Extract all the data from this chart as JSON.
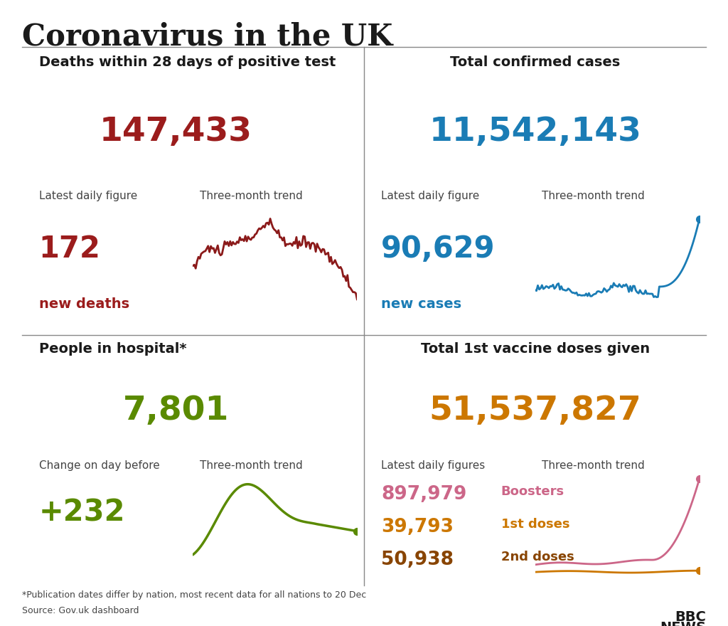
{
  "title": "Coronavirus in the UK",
  "bg_color": "#ffffff",
  "title_color": "#1a1a1a",
  "panels": [
    {
      "label": "Deaths within 28 days of positive test",
      "label_align": "left",
      "main_value": "147,433",
      "main_color": "#9b1c1c",
      "sub_label": "Latest daily figure",
      "trend_label": "Three-month trend",
      "daily_value": "172",
      "daily_sub": "new deaths",
      "daily_color": "#9b1c1c",
      "trend_color": "#8b1a1a",
      "trend_type": "deaths"
    },
    {
      "label": "Total confirmed cases",
      "label_align": "center",
      "main_value": "11,542,143",
      "main_color": "#1a7cb5",
      "sub_label": "Latest daily figure",
      "trend_label": "Three-month trend",
      "daily_value": "90,629",
      "daily_sub": "new cases",
      "daily_color": "#1a7cb5",
      "trend_color": "#1a7cb5",
      "trend_type": "cases"
    },
    {
      "label": "People in hospital*",
      "label_align": "center",
      "main_value": "7,801",
      "main_color": "#5a8a00",
      "sub_label": "Change on day before",
      "trend_label": "Three-month trend",
      "daily_value": "+232",
      "daily_sub": "",
      "daily_color": "#5a8a00",
      "trend_color": "#5a8a00",
      "trend_type": "hospital"
    },
    {
      "label": "Total 1st vaccine doses given",
      "label_align": "center",
      "main_value": "51,537,827",
      "main_color": "#cc7700",
      "sub_label": "Latest daily figures",
      "trend_label": "Three-month trend",
      "daily_value": "897,979",
      "daily_sub": "Boosters",
      "daily_value2": "39,793",
      "daily_sub2": "1st doses",
      "daily_value3": "50,938",
      "daily_sub3": "2nd doses",
      "daily_color": "#cc6688",
      "daily_color2": "#cc7700",
      "daily_color3": "#884400",
      "trend_color": "#cc6688",
      "trend_color2": "#cc7700",
      "trend_type": "vaccine"
    }
  ],
  "footnote": "*Publication dates differ by nation, most recent data for all nations to 20 Dec",
  "source": "Source: Gov.uk dashboard"
}
